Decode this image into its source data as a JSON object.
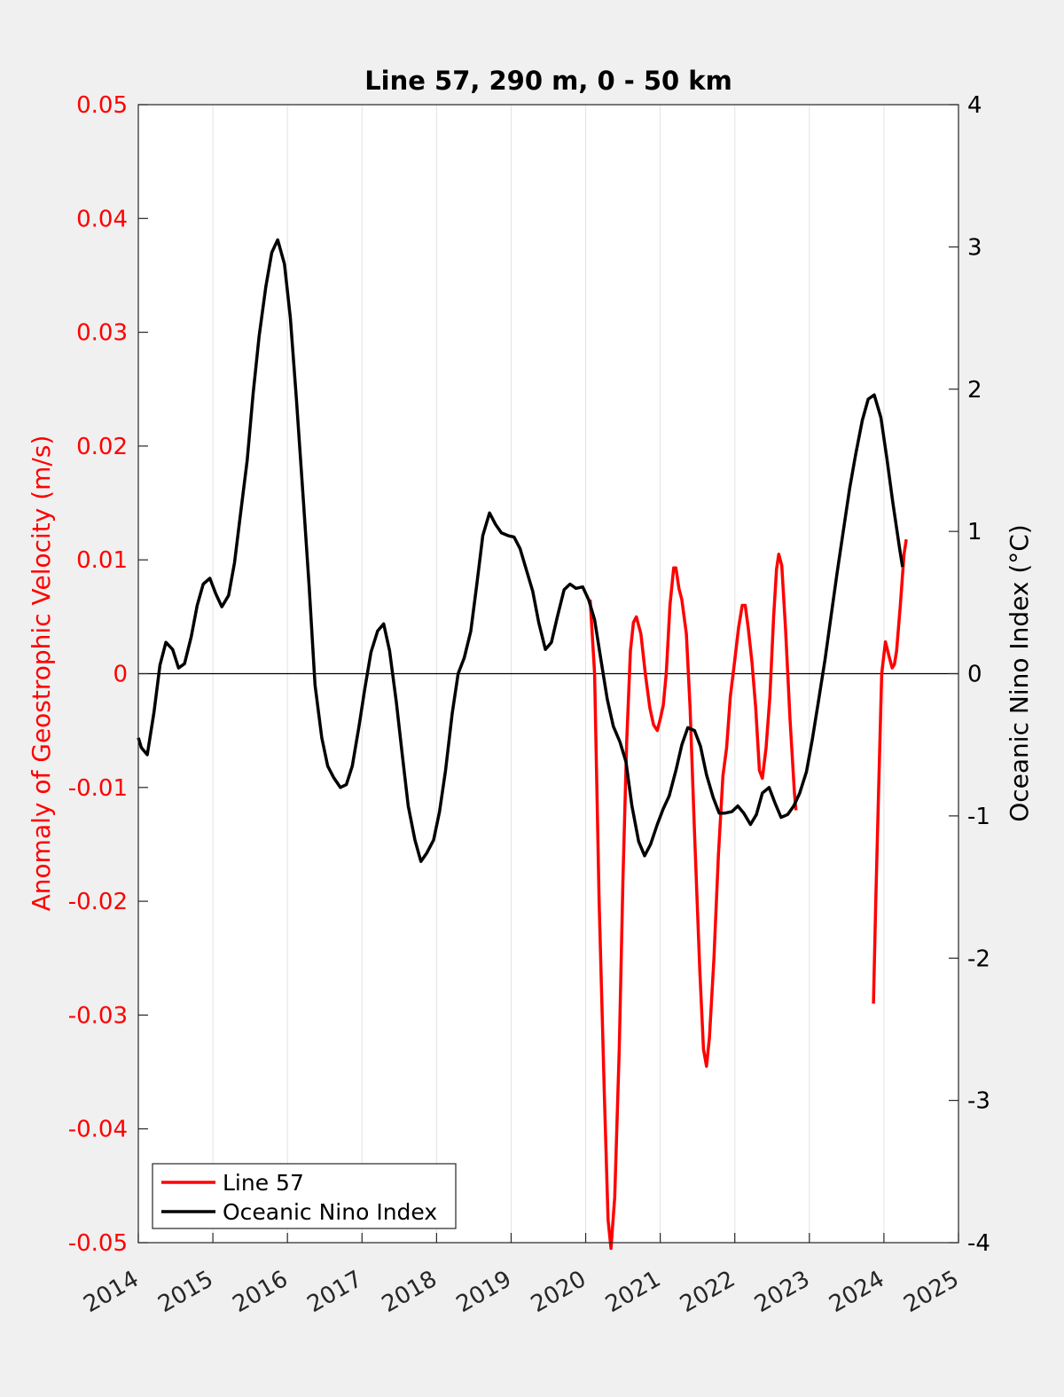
{
  "chart_data": {
    "type": "line",
    "title": "Line 57, 290 m, 0 - 50 km",
    "ylabel": "Anomaly of Geostrophic Velocity (m/s)",
    "y2label": "Oceanic Nino Index (°C)",
    "xlabel": "",
    "xlim": [
      2014,
      2025
    ],
    "ylim": [
      -0.05,
      0.05
    ],
    "y2lim": [
      -4,
      4
    ],
    "x_ticks": [
      "2014",
      "2015",
      "2016",
      "2017",
      "2018",
      "2019",
      "2020",
      "2021",
      "2022",
      "2023",
      "2024",
      "2025"
    ],
    "y_ticks": [
      "0.05",
      "0.04",
      "0.03",
      "0.02",
      "0.01",
      "0",
      "-0.01",
      "-0.02",
      "-0.03",
      "-0.04",
      "-0.05"
    ],
    "y2_ticks": [
      "4",
      "3",
      "2",
      "1",
      "0",
      "-1",
      "-2",
      "-3",
      "-4"
    ],
    "grid": "vertical x-grid only",
    "zero_line": true,
    "legend_position": "bottom-left",
    "colors": {
      "line57": "#ff0000",
      "oni": "#000000",
      "left_axis": "#ff0000",
      "right_axis": "#000000"
    },
    "series": [
      {
        "name": "Line 57",
        "axis": "left",
        "color": "#ff0000",
        "segments": [
          [
            [
              2020.06,
              0.0065
            ],
            [
              2020.12,
              0.0
            ],
            [
              2020.18,
              -0.02
            ],
            [
              2020.25,
              -0.037
            ],
            [
              2020.3,
              -0.048
            ],
            [
              2020.34,
              -0.0505
            ],
            [
              2020.39,
              -0.046
            ],
            [
              2020.45,
              -0.033
            ],
            [
              2020.5,
              -0.018
            ],
            [
              2020.55,
              -0.006
            ],
            [
              2020.6,
              0.002
            ],
            [
              2020.64,
              0.0045
            ],
            [
              2020.68,
              0.005
            ],
            [
              2020.74,
              0.0035
            ],
            [
              2020.8,
              0.0
            ],
            [
              2020.86,
              -0.003
            ],
            [
              2020.91,
              -0.0045
            ],
            [
              2020.96,
              -0.005
            ],
            [
              2021.0,
              -0.004
            ],
            [
              2021.04,
              -0.0028
            ],
            [
              2021.08,
              0.0
            ],
            [
              2021.13,
              0.006
            ],
            [
              2021.18,
              0.0093
            ],
            [
              2021.21,
              0.0093
            ],
            [
              2021.25,
              0.0075
            ],
            [
              2021.29,
              0.0065
            ],
            [
              2021.35,
              0.0035
            ],
            [
              2021.4,
              -0.003
            ],
            [
              2021.46,
              -0.014
            ],
            [
              2021.53,
              -0.026
            ],
            [
              2021.58,
              -0.033
            ],
            [
              2021.62,
              -0.0345
            ],
            [
              2021.66,
              -0.032
            ],
            [
              2021.72,
              -0.025
            ],
            [
              2021.78,
              -0.016
            ],
            [
              2021.84,
              -0.009
            ],
            [
              2021.89,
              -0.0065
            ],
            [
              2021.94,
              -0.002
            ],
            [
              2022.0,
              0.0012
            ],
            [
              2022.05,
              0.004
            ],
            [
              2022.1,
              0.006
            ],
            [
              2022.14,
              0.006
            ],
            [
              2022.18,
              0.004
            ],
            [
              2022.23,
              0.001
            ],
            [
              2022.28,
              -0.003
            ],
            [
              2022.33,
              -0.0085
            ],
            [
              2022.37,
              -0.0092
            ],
            [
              2022.42,
              -0.0065
            ],
            [
              2022.47,
              -0.002
            ],
            [
              2022.52,
              0.005
            ],
            [
              2022.56,
              0.0092
            ],
            [
              2022.59,
              0.0105
            ],
            [
              2022.63,
              0.0095
            ],
            [
              2022.68,
              0.004
            ],
            [
              2022.74,
              -0.004
            ],
            [
              2022.8,
              -0.0105
            ],
            [
              2022.82,
              -0.012
            ]
          ],
          [
            [
              2023.86,
              -0.029
            ],
            [
              2023.89,
              -0.02
            ],
            [
              2023.93,
              -0.01
            ],
            [
              2023.97,
              0.0
            ],
            [
              2024.02,
              0.0028
            ],
            [
              2024.07,
              0.0015
            ],
            [
              2024.11,
              0.0005
            ],
            [
              2024.14,
              0.0008
            ],
            [
              2024.17,
              0.002
            ],
            [
              2024.22,
              0.006
            ],
            [
              2024.27,
              0.0105
            ],
            [
              2024.3,
              0.0118
            ]
          ]
        ]
      },
      {
        "name": "Oceanic Nino Index",
        "axis": "right",
        "color": "#000000",
        "points": [
          [
            2014.0,
            -0.45
          ],
          [
            2014.04,
            -0.52
          ],
          [
            2014.12,
            -0.57
          ],
          [
            2014.21,
            -0.27
          ],
          [
            2014.29,
            0.06
          ],
          [
            2014.37,
            0.22
          ],
          [
            2014.46,
            0.17
          ],
          [
            2014.54,
            0.04
          ],
          [
            2014.62,
            0.07
          ],
          [
            2014.71,
            0.26
          ],
          [
            2014.79,
            0.48
          ],
          [
            2014.87,
            0.63
          ],
          [
            2014.96,
            0.67
          ],
          [
            2015.04,
            0.56
          ],
          [
            2015.12,
            0.47
          ],
          [
            2015.21,
            0.55
          ],
          [
            2015.29,
            0.78
          ],
          [
            2015.37,
            1.12
          ],
          [
            2015.46,
            1.5
          ],
          [
            2015.54,
            1.97
          ],
          [
            2015.62,
            2.37
          ],
          [
            2015.71,
            2.72
          ],
          [
            2015.79,
            2.96
          ],
          [
            2015.87,
            3.05
          ],
          [
            2015.96,
            2.88
          ],
          [
            2016.04,
            2.5
          ],
          [
            2016.12,
            1.93
          ],
          [
            2016.21,
            1.25
          ],
          [
            2016.29,
            0.62
          ],
          [
            2016.37,
            -0.08
          ],
          [
            2016.46,
            -0.45
          ],
          [
            2016.54,
            -0.65
          ],
          [
            2016.62,
            -0.73
          ],
          [
            2016.71,
            -0.8
          ],
          [
            2016.79,
            -0.78
          ],
          [
            2016.87,
            -0.65
          ],
          [
            2016.96,
            -0.37
          ],
          [
            2017.04,
            -0.1
          ],
          [
            2017.12,
            0.15
          ],
          [
            2017.21,
            0.3
          ],
          [
            2017.29,
            0.35
          ],
          [
            2017.37,
            0.16
          ],
          [
            2017.46,
            -0.2
          ],
          [
            2017.54,
            -0.57
          ],
          [
            2017.62,
            -0.93
          ],
          [
            2017.71,
            -1.17
          ],
          [
            2017.79,
            -1.32
          ],
          [
            2017.87,
            -1.26
          ],
          [
            2017.96,
            -1.17
          ],
          [
            2018.04,
            -0.97
          ],
          [
            2018.12,
            -0.68
          ],
          [
            2018.21,
            -0.28
          ],
          [
            2018.29,
            0.0
          ],
          [
            2018.37,
            0.11
          ],
          [
            2018.46,
            0.3
          ],
          [
            2018.54,
            0.63
          ],
          [
            2018.62,
            0.97
          ],
          [
            2018.71,
            1.13
          ],
          [
            2018.79,
            1.05
          ],
          [
            2018.87,
            0.99
          ],
          [
            2018.96,
            0.97
          ],
          [
            2019.04,
            0.96
          ],
          [
            2019.12,
            0.88
          ],
          [
            2019.21,
            0.72
          ],
          [
            2019.29,
            0.58
          ],
          [
            2019.37,
            0.36
          ],
          [
            2019.46,
            0.17
          ],
          [
            2019.54,
            0.22
          ],
          [
            2019.62,
            0.4
          ],
          [
            2019.71,
            0.59
          ],
          [
            2019.79,
            0.63
          ],
          [
            2019.87,
            0.6
          ],
          [
            2019.96,
            0.61
          ],
          [
            2020.04,
            0.52
          ],
          [
            2020.12,
            0.38
          ],
          [
            2020.21,
            0.08
          ],
          [
            2020.29,
            -0.18
          ],
          [
            2020.37,
            -0.37
          ],
          [
            2020.46,
            -0.48
          ],
          [
            2020.54,
            -0.62
          ],
          [
            2020.62,
            -0.93
          ],
          [
            2020.71,
            -1.18
          ],
          [
            2020.79,
            -1.28
          ],
          [
            2020.87,
            -1.2
          ],
          [
            2020.96,
            -1.06
          ],
          [
            2021.04,
            -0.95
          ],
          [
            2021.12,
            -0.86
          ],
          [
            2021.21,
            -0.68
          ],
          [
            2021.29,
            -0.5
          ],
          [
            2021.37,
            -0.38
          ],
          [
            2021.46,
            -0.4
          ],
          [
            2021.54,
            -0.51
          ],
          [
            2021.62,
            -0.71
          ],
          [
            2021.71,
            -0.87
          ],
          [
            2021.79,
            -0.98
          ],
          [
            2021.87,
            -0.98
          ],
          [
            2021.96,
            -0.97
          ],
          [
            2022.04,
            -0.93
          ],
          [
            2022.12,
            -0.98
          ],
          [
            2022.21,
            -1.06
          ],
          [
            2022.29,
            -0.99
          ],
          [
            2022.37,
            -0.84
          ],
          [
            2022.46,
            -0.8
          ],
          [
            2022.54,
            -0.91
          ],
          [
            2022.62,
            -1.01
          ],
          [
            2022.71,
            -0.99
          ],
          [
            2022.79,
            -0.93
          ],
          [
            2022.87,
            -0.84
          ],
          [
            2022.96,
            -0.69
          ],
          [
            2023.04,
            -0.46
          ],
          [
            2023.12,
            -0.2
          ],
          [
            2023.21,
            0.1
          ],
          [
            2023.29,
            0.4
          ],
          [
            2023.37,
            0.7
          ],
          [
            2023.46,
            1.02
          ],
          [
            2023.54,
            1.3
          ],
          [
            2023.62,
            1.54
          ],
          [
            2023.71,
            1.78
          ],
          [
            2023.79,
            1.93
          ],
          [
            2023.87,
            1.96
          ],
          [
            2023.96,
            1.8
          ],
          [
            2024.04,
            1.51
          ],
          [
            2024.12,
            1.2
          ],
          [
            2024.21,
            0.88
          ],
          [
            2024.25,
            0.75
          ]
        ]
      }
    ]
  }
}
